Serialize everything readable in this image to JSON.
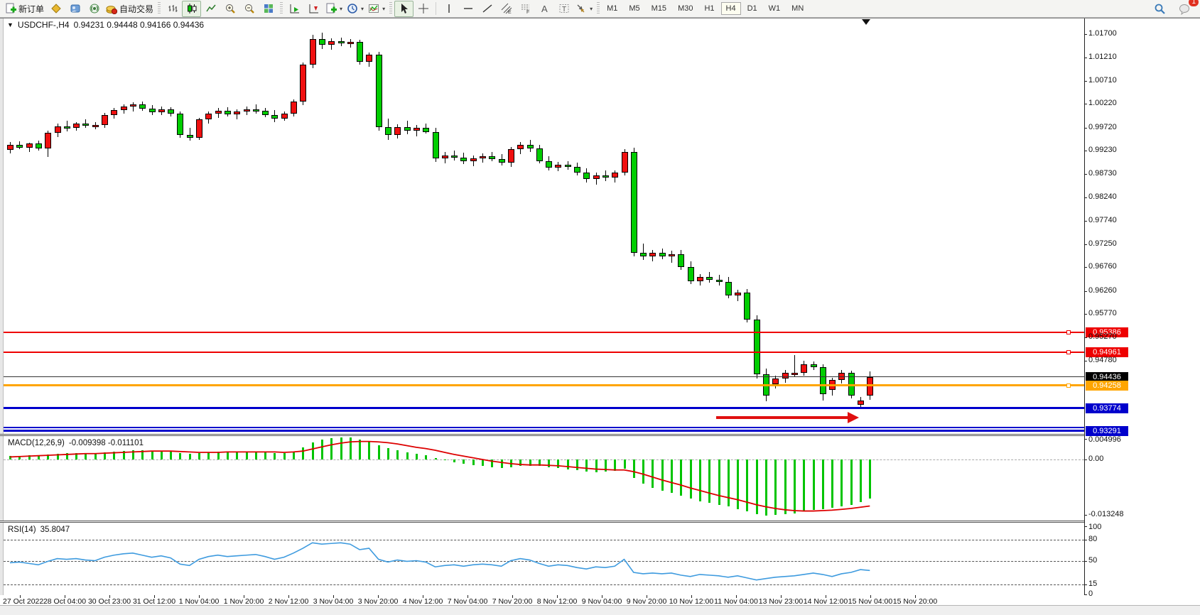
{
  "toolbar": {
    "new_order_label": "新订单",
    "autotrading_label": "自动交易",
    "timeframes": [
      "M1",
      "M5",
      "M15",
      "M30",
      "H1",
      "H4",
      "D1",
      "W1",
      "MN"
    ],
    "active_timeframe": "H4",
    "notification_count": "1"
  },
  "chart": {
    "title": {
      "symbol_period": "USDCHF-,H4",
      "ohlc_text": "0.94231 0.94448 0.94166 0.94436"
    },
    "macd_header": {
      "name": "MACD(12,26,9)",
      "values": "-0.009398 -0.011101"
    },
    "rsi_header": {
      "name": "RSI(14)",
      "values": "35.8047"
    }
  },
  "chart_data": {
    "type": "candlestick",
    "symbol": "USDCHF-",
    "period": "H4",
    "colors": {
      "bull": "#f01010",
      "bear": "#00cd00",
      "macd_signal": "#dd0000",
      "rsi_line": "#3e9bdf",
      "line_red": "#ee0000",
      "line_orange": "#ffa500",
      "line_blue": "#0000cc",
      "bid_line": "#333333"
    },
    "current_ohlc": {
      "open": 0.94231,
      "high": 0.94448,
      "low": 0.94166,
      "close": 0.94436
    },
    "candles": [
      [
        0.9925,
        0.9941,
        0.9918,
        0.9936
      ],
      [
        0.9936,
        0.9943,
        0.9926,
        0.993
      ],
      [
        0.993,
        0.994,
        0.9921,
        0.9938
      ],
      [
        0.9938,
        0.9944,
        0.9924,
        0.9928
      ],
      [
        0.9928,
        0.9966,
        0.991,
        0.9961
      ],
      [
        0.9961,
        0.9981,
        0.9952,
        0.9975
      ],
      [
        0.9975,
        0.9986,
        0.9964,
        0.9972
      ],
      [
        0.9972,
        0.9984,
        0.9966,
        0.998
      ],
      [
        0.998,
        0.9989,
        0.9971,
        0.9976
      ],
      [
        0.9976,
        0.9984,
        0.9969,
        0.9978
      ],
      [
        0.9978,
        1.0003,
        0.9972,
        0.9999
      ],
      [
        0.9999,
        1.0013,
        0.9991,
        1.0009
      ],
      [
        1.0009,
        1.0021,
        1.0001,
        1.0016
      ],
      [
        1.0016,
        1.0025,
        1.0006,
        1.0021
      ],
      [
        1.0021,
        1.0027,
        1.0008,
        1.0012
      ],
      [
        1.0012,
        1.0019,
        0.9998,
        1.0005
      ],
      [
        1.0005,
        1.0017,
        0.9998,
        1.0011
      ],
      [
        1.0011,
        1.0015,
        0.9996,
        1.0001
      ],
      [
        1.0001,
        1.0006,
        0.995,
        0.9957
      ],
      [
        0.9957,
        0.9971,
        0.9944,
        0.995
      ],
      [
        0.995,
        0.9993,
        0.9946,
        0.9989
      ],
      [
        0.9989,
        1.0006,
        0.9981,
        1.0001
      ],
      [
        1.0001,
        1.0013,
        0.9992,
        1.0007
      ],
      [
        1.0007,
        1.0015,
        0.9995,
        1.0
      ],
      [
        1.0,
        1.0011,
        0.999,
        1.0006
      ],
      [
        1.0006,
        1.0017,
        0.9999,
        1.0011
      ],
      [
        1.0011,
        1.0021,
        1.0002,
        1.0007
      ],
      [
        1.0007,
        1.0014,
        0.9994,
        0.9999
      ],
      [
        0.9999,
        1.0009,
        0.9984,
        0.9991
      ],
      [
        0.9991,
        1.0006,
        0.9986,
        1.0001
      ],
      [
        1.0001,
        1.0032,
        0.9996,
        1.0027
      ],
      [
        1.0027,
        1.011,
        1.002,
        1.0105
      ],
      [
        1.0105,
        1.0168,
        1.0098,
        1.0159
      ],
      [
        1.0159,
        1.0173,
        1.0139,
        1.0147
      ],
      [
        1.0147,
        1.0161,
        1.0137,
        1.0155
      ],
      [
        1.0155,
        1.0163,
        1.0144,
        1.015
      ],
      [
        1.015,
        1.0159,
        1.0142,
        1.0154
      ],
      [
        1.0154,
        1.0158,
        1.0106,
        1.0112
      ],
      [
        1.0112,
        1.0131,
        1.0101,
        1.0126
      ],
      [
        1.0126,
        1.0133,
        0.9966,
        0.9973
      ],
      [
        0.9973,
        0.9991,
        0.9946,
        0.9956
      ],
      [
        0.9956,
        0.9979,
        0.9949,
        0.9973
      ],
      [
        0.9973,
        0.9986,
        0.9958,
        0.9966
      ],
      [
        0.9966,
        0.9977,
        0.9953,
        0.9971
      ],
      [
        0.9971,
        0.9981,
        0.9959,
        0.9963
      ],
      [
        0.9963,
        0.9971,
        0.9899,
        0.9906
      ],
      [
        0.9906,
        0.9921,
        0.9896,
        0.9913
      ],
      [
        0.9913,
        0.9923,
        0.9902,
        0.9908
      ],
      [
        0.9908,
        0.9919,
        0.9894,
        0.99
      ],
      [
        0.99,
        0.9913,
        0.989,
        0.9907
      ],
      [
        0.9907,
        0.9917,
        0.9898,
        0.9911
      ],
      [
        0.9911,
        0.9921,
        0.99,
        0.9905
      ],
      [
        0.9905,
        0.9916,
        0.9891,
        0.9897
      ],
      [
        0.9897,
        0.9931,
        0.9889,
        0.9926
      ],
      [
        0.9926,
        0.9941,
        0.9916,
        0.9936
      ],
      [
        0.9936,
        0.9946,
        0.9921,
        0.9928
      ],
      [
        0.9928,
        0.9936,
        0.9896,
        0.9901
      ],
      [
        0.9901,
        0.9911,
        0.9881,
        0.9887
      ],
      [
        0.9887,
        0.9899,
        0.9879,
        0.9893
      ],
      [
        0.9893,
        0.9901,
        0.9883,
        0.9889
      ],
      [
        0.9889,
        0.9897,
        0.9871,
        0.9876
      ],
      [
        0.9876,
        0.9886,
        0.9856,
        0.9863
      ],
      [
        0.9863,
        0.9876,
        0.9851,
        0.9871
      ],
      [
        0.9871,
        0.9881,
        0.9859,
        0.9866
      ],
      [
        0.9866,
        0.9881,
        0.9856,
        0.9876
      ],
      [
        0.9876,
        0.9926,
        0.987,
        0.9921
      ],
      [
        0.9921,
        0.9929,
        0.9699,
        0.9707
      ],
      [
        0.9707,
        0.9726,
        0.9691,
        0.9699
      ],
      [
        0.9699,
        0.9713,
        0.9689,
        0.9706
      ],
      [
        0.9706,
        0.9716,
        0.9693,
        0.9699
      ],
      [
        0.9699,
        0.9711,
        0.9686,
        0.9703
      ],
      [
        0.9703,
        0.9713,
        0.9671,
        0.9677
      ],
      [
        0.9677,
        0.9689,
        0.9641,
        0.9647
      ],
      [
        0.9647,
        0.9662,
        0.9637,
        0.9655
      ],
      [
        0.9655,
        0.9666,
        0.9644,
        0.965
      ],
      [
        0.965,
        0.966,
        0.9638,
        0.9645
      ],
      [
        0.9645,
        0.9656,
        0.961,
        0.9616
      ],
      [
        0.9616,
        0.9629,
        0.9604,
        0.9622
      ],
      [
        0.9622,
        0.963,
        0.956,
        0.9566
      ],
      [
        0.9566,
        0.9574,
        0.944,
        0.945
      ],
      [
        0.945,
        0.9462,
        0.9392,
        0.9404
      ],
      [
        0.9428,
        0.9446,
        0.942,
        0.944
      ],
      [
        0.944,
        0.9458,
        0.9432,
        0.9452
      ],
      [
        0.9449,
        0.949,
        0.9443,
        0.9452
      ],
      [
        0.9452,
        0.9478,
        0.9446,
        0.947
      ],
      [
        0.947,
        0.9477,
        0.9458,
        0.9464
      ],
      [
        0.9464,
        0.947,
        0.9394,
        0.9407
      ],
      [
        0.9417,
        0.9442,
        0.9404,
        0.9437
      ],
      [
        0.9437,
        0.9458,
        0.943,
        0.9452
      ],
      [
        0.9452,
        0.9457,
        0.9398,
        0.9404
      ],
      [
        0.9385,
        0.9402,
        0.9378,
        0.9394
      ],
      [
        0.9404,
        0.9455,
        0.9396,
        0.94436
      ]
    ],
    "price_axis_labels": [
      "1.01700",
      "1.01210",
      "1.00710",
      "1.00220",
      "0.99720",
      "0.99230",
      "0.98730",
      "0.98240",
      "0.97740",
      "0.97250",
      "0.96760",
      "0.96260",
      "0.95770",
      "0.95270",
      "0.94780"
    ],
    "price_lines": [
      {
        "price": 0.95386,
        "label": "0.95386",
        "color": "#ee0000",
        "thickness": 2,
        "marker": true
      },
      {
        "price": 0.94961,
        "label": "0.94961",
        "color": "#ee0000",
        "thickness": 2,
        "marker": true
      },
      {
        "price": 0.94436,
        "label": "0.94436",
        "color": "#333333",
        "thickness": 1,
        "marker": false,
        "badge": "#000000",
        "role": "bid"
      },
      {
        "price": 0.94258,
        "label": "0.94258",
        "color": "#ffa500",
        "thickness": 3,
        "marker": true
      },
      {
        "price": 0.93774,
        "label": "0.93774",
        "color": "#0000cc",
        "thickness": 3,
        "marker": false
      },
      {
        "price": 0.9336,
        "label": "",
        "color": "#0000cc",
        "thickness": 2,
        "marker": false
      },
      {
        "price": 0.93291,
        "label": "0.93291",
        "color": "#0000cc",
        "thickness": 3,
        "marker": false
      }
    ],
    "arrow_annotation": {
      "color": "#e01010",
      "price": 0.9358,
      "from_index": 75,
      "to_index": 90
    },
    "macd": {
      "name": "MACD(12,26,9)",
      "scale_labels": [
        "0.004996",
        "0.00",
        "-0.013248"
      ],
      "scale_values": [
        0.004996,
        0.0,
        -0.013248
      ],
      "histogram": [
        0.0008,
        0.0009,
        0.001,
        0.001,
        0.0012,
        0.0014,
        0.0015,
        0.0016,
        0.0016,
        0.0015,
        0.0017,
        0.0019,
        0.0021,
        0.0022,
        0.0022,
        0.0021,
        0.002,
        0.0019,
        0.0016,
        0.0014,
        0.0015,
        0.0017,
        0.0018,
        0.0018,
        0.0018,
        0.0019,
        0.0019,
        0.0018,
        0.0016,
        0.0016,
        0.0019,
        0.0028,
        0.004,
        0.0047,
        0.0051,
        0.0052,
        0.0052,
        0.0048,
        0.0044,
        0.0034,
        0.0027,
        0.0022,
        0.0017,
        0.0014,
        0.0011,
        0.0004,
        -0.0002,
        -0.0007,
        -0.0011,
        -0.0014,
        -0.0016,
        -0.0018,
        -0.0021,
        -0.0019,
        -0.0016,
        -0.0015,
        -0.0016,
        -0.0019,
        -0.0021,
        -0.0023,
        -0.0026,
        -0.0029,
        -0.003,
        -0.0029,
        -0.0027,
        -0.0022,
        -0.0044,
        -0.0058,
        -0.0068,
        -0.0075,
        -0.008,
        -0.0086,
        -0.0094,
        -0.01,
        -0.0104,
        -0.0108,
        -0.0112,
        -0.0118,
        -0.0124,
        -0.0131,
        -0.0134,
        -0.0133,
        -0.0131,
        -0.0128,
        -0.0124,
        -0.0121,
        -0.0118,
        -0.0116,
        -0.0112,
        -0.0108,
        -0.0101,
        -0.0094
      ],
      "signal": [
        0.0006,
        0.0007,
        0.0008,
        0.0009,
        0.001,
        0.0011,
        0.0012,
        0.0013,
        0.0014,
        0.0014,
        0.0015,
        0.0016,
        0.0017,
        0.0018,
        0.0019,
        0.002,
        0.002,
        0.002,
        0.0019,
        0.0018,
        0.0017,
        0.0017,
        0.0017,
        0.0018,
        0.0018,
        0.0018,
        0.0018,
        0.0018,
        0.0018,
        0.0017,
        0.0018,
        0.002,
        0.0025,
        0.003,
        0.0035,
        0.0039,
        0.0042,
        0.0043,
        0.0043,
        0.0042,
        0.004,
        0.0037,
        0.0033,
        0.0029,
        0.0026,
        0.0022,
        0.0017,
        0.0012,
        0.0008,
        0.0004,
        0.0,
        -0.0004,
        -0.0007,
        -0.001,
        -0.0012,
        -0.0013,
        -0.0013,
        -0.0014,
        -0.0015,
        -0.0017,
        -0.0019,
        -0.0021,
        -0.0023,
        -0.0024,
        -0.0025,
        -0.0025,
        -0.0029,
        -0.0035,
        -0.0042,
        -0.0049,
        -0.0055,
        -0.0061,
        -0.0068,
        -0.0074,
        -0.008,
        -0.0086,
        -0.0091,
        -0.0096,
        -0.0102,
        -0.0108,
        -0.0113,
        -0.0117,
        -0.012,
        -0.0122,
        -0.0123,
        -0.0123,
        -0.0122,
        -0.0121,
        -0.0119,
        -0.0117,
        -0.0114,
        -0.0111
      ],
      "current_macd": -0.009398,
      "current_signal": -0.011101
    },
    "rsi": {
      "name": "RSI(14)",
      "current": 35.8047,
      "levels": [
        80,
        50,
        15
      ],
      "scale_labels": [
        "100",
        "80",
        "50",
        "15",
        "0"
      ],
      "values": [
        47,
        48,
        46,
        44,
        49,
        53,
        52,
        53,
        51,
        50,
        55,
        58,
        60,
        61,
        58,
        55,
        57,
        54,
        45,
        43,
        52,
        56,
        58,
        56,
        57,
        58,
        59,
        56,
        52,
        55,
        61,
        68,
        76,
        74,
        75,
        76,
        74,
        66,
        68,
        52,
        48,
        51,
        49,
        50,
        48,
        41,
        43,
        44,
        42,
        44,
        45,
        44,
        42,
        50,
        53,
        51,
        46,
        42,
        44,
        43,
        40,
        38,
        41,
        40,
        42,
        52,
        33,
        31,
        32,
        31,
        32,
        29,
        27,
        30,
        29,
        28,
        26,
        28,
        25,
        22,
        24,
        26,
        27,
        28,
        30,
        32,
        30,
        27,
        31,
        33,
        37,
        35.8
      ]
    },
    "time_axis_labels": [
      "27 Oct 2022",
      "28 Oct 04:00",
      "30 Oct 23:00",
      "31 Oct 12:00",
      "1 Nov 04:00",
      "1 Nov 20:00",
      "2 Nov 12:00",
      "3 Nov 04:00",
      "3 Nov 20:00",
      "4 Nov 12:00",
      "7 Nov 04:00",
      "7 Nov 20:00",
      "8 Nov 12:00",
      "9 Nov 04:00",
      "9 Nov 20:00",
      "10 Nov 12:00",
      "11 Nov 04:00",
      "13 Nov 23:00",
      "14 Nov 12:00",
      "15 Nov 04:00",
      "15 Nov 20:00"
    ]
  }
}
